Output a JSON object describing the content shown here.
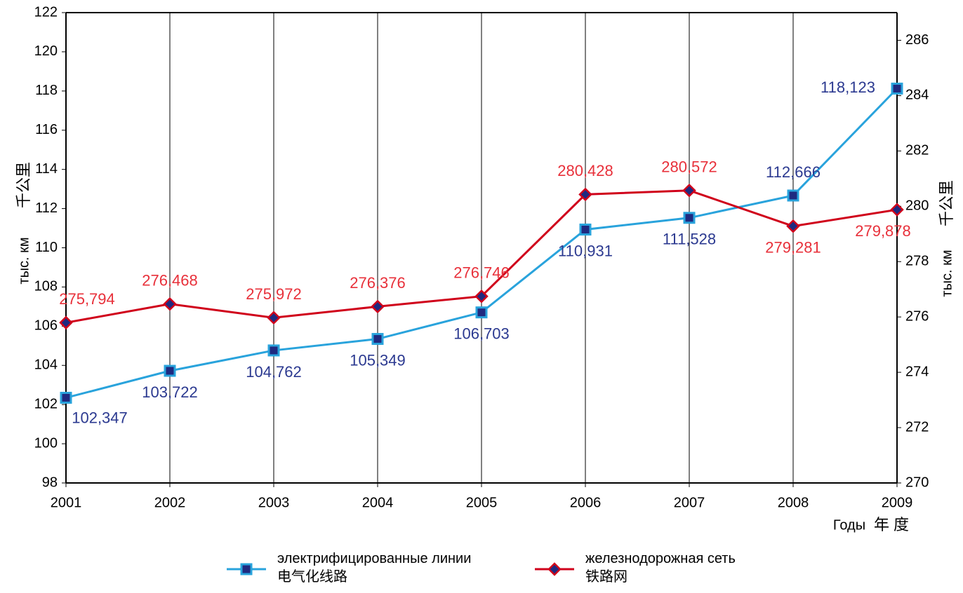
{
  "chart_data": {
    "type": "line",
    "x": [
      2001,
      2002,
      2003,
      2004,
      2005,
      2006,
      2007,
      2008,
      2009
    ],
    "xlim": [
      2001,
      2009
    ],
    "xticks": [
      2001,
      2002,
      2003,
      2004,
      2005,
      2006,
      2007,
      2008,
      2009
    ],
    "ylim": [
      98,
      122
    ],
    "yticks": [
      98,
      100,
      102,
      104,
      106,
      108,
      110,
      112,
      114,
      116,
      118,
      120,
      122
    ],
    "y2lim": [
      270,
      287
    ],
    "y2ticks": [
      270,
      272,
      274,
      276,
      278,
      280,
      282,
      284,
      286
    ],
    "y_label": [
      "тыс. км",
      "千公里"
    ],
    "y2_label": [
      "千公里",
      "тыс. км"
    ],
    "x_label": [
      "Годы",
      "年 度"
    ],
    "grid": "x",
    "series": [
      {
        "name": "электрифицированные линии\n电气化线路",
        "color": "#29a3dc",
        "marker_color": "#1f2a80",
        "label_color": "#2b3990",
        "marker": "square",
        "values": [
          102.347,
          103.722,
          104.762,
          105.349,
          106.703,
          110.931,
          111.528,
          112.666,
          118.123
        ],
        "value_labels": [
          "102,347",
          "103,722",
          "104,762",
          "105,349",
          "106,703",
          "110,931",
          "111,528",
          "112,666",
          "118,123"
        ]
      },
      {
        "name": "железнодорожная сеть\n铁路网",
        "color": "#d0021b",
        "marker_color": "#1f2a80",
        "label_color": "#e8303a",
        "marker": "diamond",
        "axis": "y2",
        "values": [
          275.794,
          276.468,
          275.972,
          276.376,
          276.746,
          280.428,
          280.572,
          279.281,
          279.878
        ],
        "value_labels": [
          "275,794",
          "276,468",
          "275,972",
          "276,376",
          "276,746",
          "280,428",
          "280,572",
          "279,281",
          "279,878"
        ]
      }
    ]
  }
}
